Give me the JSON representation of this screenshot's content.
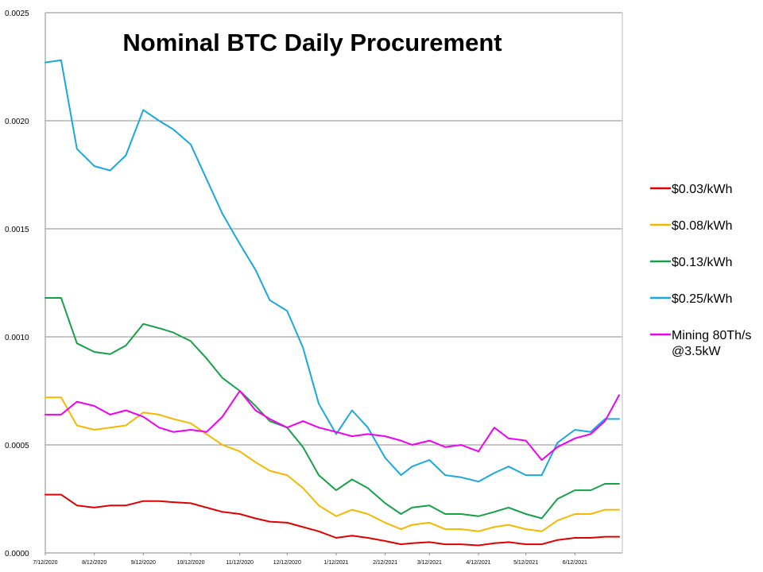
{
  "chart_data": {
    "type": "line",
    "title": "Nominal BTC Daily Procurement",
    "xlabel": "",
    "ylabel": "",
    "ylim": [
      0,
      0.0025
    ],
    "y_ticks": [
      "0.0000",
      "0.0005",
      "0.0010",
      "0.0015",
      "0.0020",
      "0.0025"
    ],
    "x_ticks": [
      "7/12/2020",
      "8/12/2020",
      "9/12/2020",
      "10/12/2020",
      "11/12/2020",
      "12/12/2020",
      "1/12/2021",
      "2/12/2021",
      "3/12/2021",
      "4/12/2021",
      "5/12/2021",
      "6/12/2021"
    ],
    "xlim": [
      "7/12/2020",
      "7/12/2021"
    ],
    "grid": "horizontal",
    "legend_position": "right",
    "x": [
      "7/12/2020",
      "7/22/2020",
      "8/1/2020",
      "8/12/2020",
      "8/22/2020",
      "9/1/2020",
      "9/12/2020",
      "9/22/2020",
      "10/1/2020",
      "10/12/2020",
      "10/22/2020",
      "11/1/2020",
      "11/12/2020",
      "11/22/2020",
      "12/1/2020",
      "12/12/2020",
      "12/22/2020",
      "1/1/2021",
      "1/12/2021",
      "1/22/2021",
      "2/1/2021",
      "2/12/2021",
      "2/22/2021",
      "3/1/2021",
      "3/12/2021",
      "3/22/2021",
      "4/1/2021",
      "4/12/2021",
      "4/22/2021",
      "5/1/2021",
      "5/12/2021",
      "5/22/2021",
      "6/1/2021",
      "6/12/2021",
      "6/22/2021",
      "7/1/2021",
      "7/10/2021"
    ],
    "series": [
      {
        "name": "$0.03/kWh",
        "color": "#e00000",
        "values": [
          0.00027,
          0.00027,
          0.00022,
          0.00021,
          0.00022,
          0.00022,
          0.00024,
          0.00024,
          0.000235,
          0.00023,
          0.00021,
          0.00019,
          0.00018,
          0.00016,
          0.000145,
          0.00014,
          0.00012,
          0.0001,
          7e-05,
          8e-05,
          7e-05,
          5.5e-05,
          4e-05,
          4.5e-05,
          5e-05,
          4e-05,
          4e-05,
          3.5e-05,
          4.5e-05,
          5e-05,
          4e-05,
          4e-05,
          6e-05,
          7e-05,
          7e-05,
          7.5e-05,
          7.5e-05
        ]
      },
      {
        "name": "$0.08/kWh",
        "color": "#f5b800",
        "values": [
          0.00072,
          0.00072,
          0.00059,
          0.00057,
          0.00058,
          0.00059,
          0.00065,
          0.00064,
          0.00062,
          0.0006,
          0.00055,
          0.0005,
          0.00047,
          0.00042,
          0.00038,
          0.00036,
          0.0003,
          0.00022,
          0.00017,
          0.0002,
          0.00018,
          0.00014,
          0.00011,
          0.00013,
          0.00014,
          0.00011,
          0.00011,
          0.0001,
          0.00012,
          0.00013,
          0.00011,
          0.0001,
          0.00015,
          0.00018,
          0.00018,
          0.0002,
          0.0002
        ]
      },
      {
        "name": "$0.13/kWh",
        "color": "#18a048",
        "values": [
          0.00118,
          0.00118,
          0.00097,
          0.00093,
          0.00092,
          0.00096,
          0.00106,
          0.00104,
          0.00102,
          0.00098,
          0.0009,
          0.00081,
          0.00075,
          0.00068,
          0.00061,
          0.00058,
          0.00049,
          0.00036,
          0.00029,
          0.00034,
          0.0003,
          0.00023,
          0.00018,
          0.00021,
          0.00022,
          0.00018,
          0.00018,
          0.00017,
          0.00019,
          0.00021,
          0.00018,
          0.00016,
          0.00025,
          0.00029,
          0.00029,
          0.00032,
          0.00032
        ]
      },
      {
        "name": "$0.25/kWh",
        "color": "#1aa7e0",
        "values": [
          0.00227,
          0.00228,
          0.00187,
          0.00179,
          0.00177,
          0.00184,
          0.00205,
          0.002,
          0.00196,
          0.00189,
          0.00173,
          0.00157,
          0.00143,
          0.00131,
          0.00117,
          0.00112,
          0.00095,
          0.00069,
          0.00055,
          0.00066,
          0.00058,
          0.00044,
          0.00036,
          0.0004,
          0.00043,
          0.00036,
          0.00035,
          0.00033,
          0.00037,
          0.0004,
          0.00036,
          0.00036,
          0.00051,
          0.00057,
          0.00056,
          0.00062,
          0.00062
        ]
      },
      {
        "name": "Mining 80Th/s @3.5kW",
        "color": "#f000f0",
        "values": [
          0.00064,
          0.00064,
          0.0007,
          0.00068,
          0.00064,
          0.00066,
          0.00063,
          0.00058,
          0.00056,
          0.00057,
          0.00056,
          0.00063,
          0.00075,
          0.00066,
          0.00062,
          0.00058,
          0.00061,
          0.00058,
          0.00056,
          0.00054,
          0.00055,
          0.00054,
          0.00052,
          0.0005,
          0.00052,
          0.00049,
          0.0005,
          0.00047,
          0.00058,
          0.00053,
          0.00052,
          0.00043,
          0.00049,
          0.00053,
          0.00055,
          0.00061,
          0.00073
        ]
      }
    ]
  }
}
